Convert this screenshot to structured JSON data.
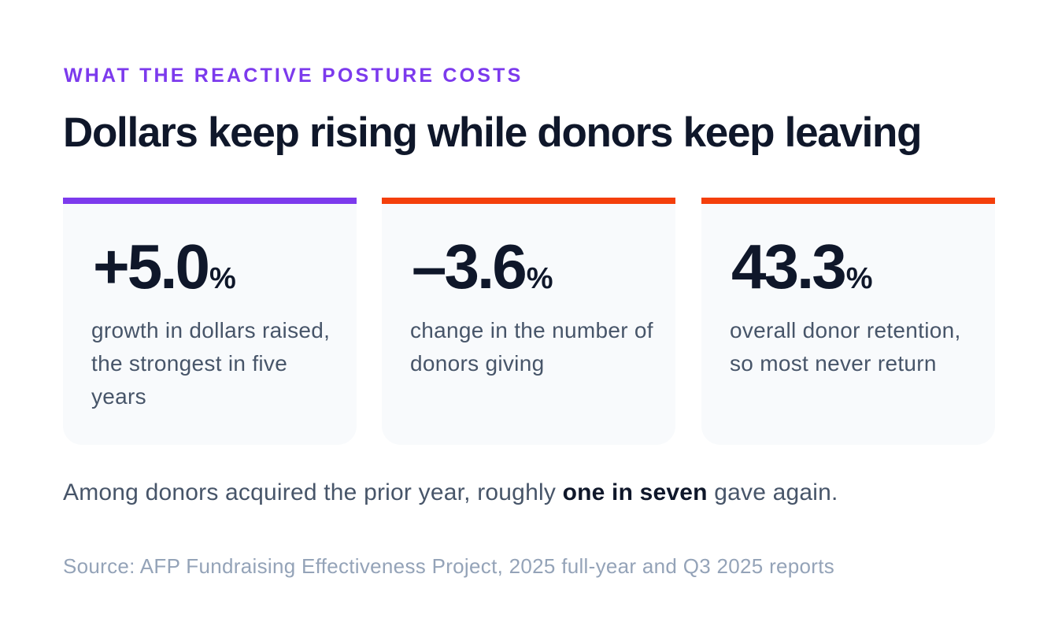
{
  "eyebrow": "WHAT THE REACTIVE POSTURE COSTS",
  "headline": "Dollars keep rising while donors keep leaving",
  "colors": {
    "accent_purple": "#7c3aed",
    "accent_orange": "#f43f0b",
    "headline": "#0f172a",
    "body_text": "#475569",
    "muted_text": "#94a3b8",
    "card_bg": "#f8fafc"
  },
  "cards": [
    {
      "value": "+5.0",
      "unit": "%",
      "description": "growth in dollars raised, the strongest in five years",
      "accent": "#7c3aed"
    },
    {
      "value": "–3.6",
      "unit": "%",
      "description": "change in the number of donors giving",
      "accent": "#f43f0b"
    },
    {
      "value": "43.3",
      "unit": "%",
      "description": "overall donor retention, so most never return",
      "accent": "#f43f0b"
    }
  ],
  "note": {
    "prefix": "Among donors acquired the prior year, roughly ",
    "emphasis": "one in seven",
    "suffix": " gave again."
  },
  "source": "Source: AFP Fundraising Effectiveness Project, 2025 full-year and Q3 2025 reports"
}
